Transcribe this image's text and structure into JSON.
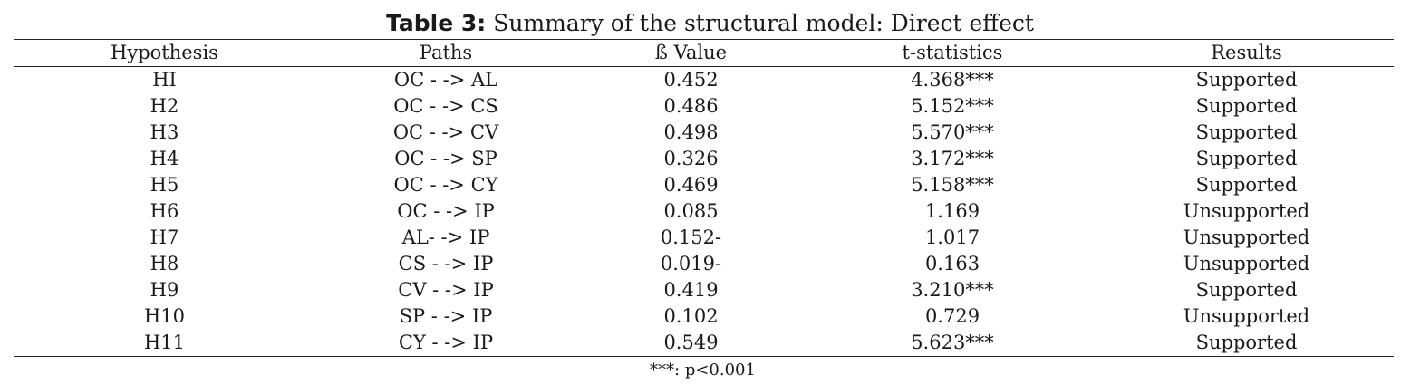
{
  "title": {
    "label": "Table 3:",
    "text": "Summary of the structural model: Direct effect"
  },
  "headers": [
    "Hypothesis",
    "Paths",
    "ß Value",
    "t-statistics",
    "Results"
  ],
  "rows": [
    [
      "HI",
      "OC - -> AL",
      "0.452",
      "4.368***",
      "Supported"
    ],
    [
      "H2",
      "OC - -> CS",
      "0.486",
      "5.152***",
      "Supported"
    ],
    [
      "H3",
      "OC - -> CV",
      "0.498",
      "5.570***",
      "Supported"
    ],
    [
      "H4",
      "OC - -> SP",
      "0.326",
      "3.172***",
      "Supported"
    ],
    [
      "H5",
      "OC - -> CY",
      "0.469",
      "5.158***",
      "Supported"
    ],
    [
      "H6",
      "OC - -> IP",
      "0.085",
      "1.169",
      "Unsupported"
    ],
    [
      "H7",
      "AL- -> IP",
      "0.152-",
      "1.017",
      "Unsupported"
    ],
    [
      "H8",
      "CS - -> IP",
      "0.019-",
      "0.163",
      "Unsupported"
    ],
    [
      "H9",
      "CV - -> IP",
      "0.419",
      "3.210***",
      "Supported"
    ],
    [
      "H10",
      "SP - -> IP",
      "0.102",
      "0.729",
      "Unsupported"
    ],
    [
      "H11",
      "CY - -> IP",
      "0.549",
      "5.623***",
      "Supported"
    ]
  ],
  "note": "***: p<0.001"
}
